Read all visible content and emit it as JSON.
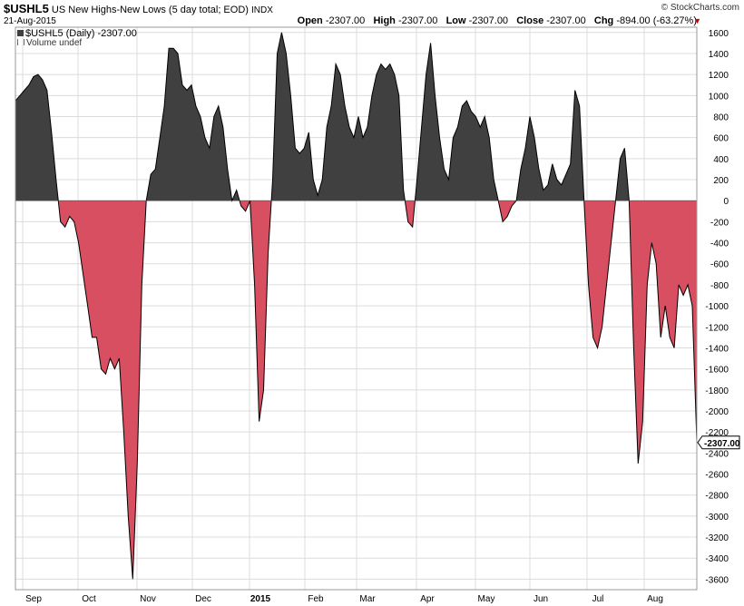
{
  "header": {
    "symbol": "$USHL5",
    "description": "US New Highs-New Lows (5 day total; EOD)",
    "exchange": "INDX",
    "date": "21-Aug-2015",
    "copyright": "© StockCharts.com",
    "open_label": "Open",
    "open_value": "-2307.00",
    "high_label": "High",
    "high_value": "-2307.00",
    "low_label": "Low",
    "low_value": "-2307.00",
    "close_label": "Close",
    "close_value": "-2307.00",
    "chg_label": "Chg",
    "chg_value": "-894.00 (-63.27%)",
    "chg_arrow": "▼"
  },
  "legend": {
    "series_label": "$USHL5 (Daily) -2307.00",
    "volume_label": "Volume undef"
  },
  "last_value_label": "-2307.00",
  "chart_data": {
    "type": "area",
    "xlabels": [
      "Sep",
      "Oct",
      "Nov",
      "Dec",
      "2015",
      "Feb",
      "Mar",
      "Apr",
      "May",
      "Jun",
      "Jul",
      "Aug"
    ],
    "yticks": [
      1600,
      1400,
      1200,
      1000,
      800,
      600,
      400,
      200,
      0,
      -200,
      -400,
      -600,
      -800,
      -1000,
      -1200,
      -1400,
      -1600,
      -1800,
      -2000,
      -2200,
      -2400,
      -2600,
      -2800,
      -3000,
      -3200,
      -3400,
      -3600
    ],
    "ylim": [
      -3700,
      1650
    ],
    "positive_color": "#404040",
    "negative_color": "#d94f62",
    "series": [
      {
        "values": [
          950,
          1000,
          1050,
          1100,
          1180,
          1200,
          1150,
          1050,
          650,
          200,
          -200,
          -250,
          -150,
          -200,
          -400,
          -700,
          -1000,
          -1300,
          -1300,
          -1600,
          -1650,
          -1500,
          -1600,
          -1500,
          -2200,
          -3000,
          -3600,
          -2500,
          -800,
          0,
          250,
          300,
          600,
          900,
          1450,
          1450,
          1400,
          1100,
          1050,
          1100,
          900,
          800,
          600,
          500,
          800,
          900,
          700,
          300,
          0,
          100,
          -50,
          -100,
          0,
          -800,
          -2100,
          -1800,
          -500,
          200,
          1400,
          1600,
          1400,
          1000,
          500,
          450,
          500,
          650,
          200,
          50,
          200,
          700,
          900,
          1300,
          1200,
          900,
          700,
          600,
          800,
          600,
          700,
          1000,
          1200,
          1300,
          1250,
          1300,
          1200,
          1000,
          100,
          -200,
          -250,
          200,
          700,
          1200,
          1500,
          1000,
          600,
          300,
          200,
          600,
          700,
          900,
          950,
          850,
          800,
          700,
          800,
          600,
          200,
          0,
          -200,
          -150,
          -50,
          0,
          300,
          500,
          800,
          600,
          300,
          100,
          150,
          350,
          200,
          150,
          250,
          350,
          1050,
          900,
          0,
          -800,
          -1300,
          -1400,
          -1200,
          -800,
          -400,
          0,
          400,
          500,
          0,
          -1400,
          -2500,
          -2100,
          -800,
          -400,
          -600,
          -1300,
          -1000,
          -1300,
          -1400,
          -800,
          -900,
          -800,
          -1000,
          -2300
        ]
      }
    ]
  }
}
